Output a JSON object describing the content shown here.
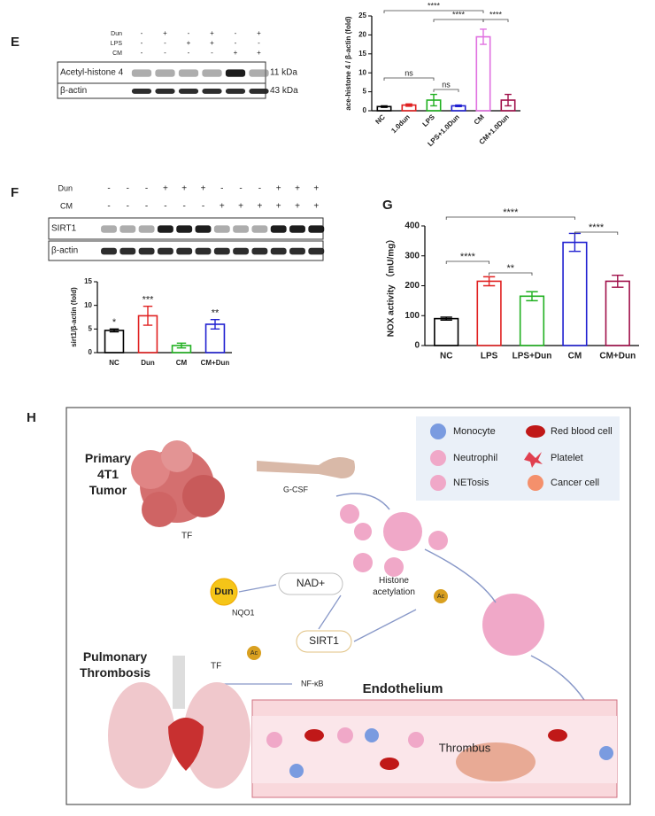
{
  "panels": [
    "E",
    "F",
    "G",
    "H"
  ],
  "blot_e": {
    "conditions": [
      {
        "name": "Dun",
        "signs": [
          "-",
          "+",
          "-",
          "+",
          "-",
          "+"
        ]
      },
      {
        "name": "LPS",
        "signs": [
          "-",
          "-",
          "+",
          "+",
          "-",
          "-"
        ]
      },
      {
        "name": "CM",
        "signs": [
          "-",
          "-",
          "-",
          "-",
          "+",
          "+"
        ]
      }
    ],
    "bands": [
      {
        "name": "Acetyl-histone 4",
        "size": "11 kDa"
      },
      {
        "name": "β-actin",
        "size": "43 kDa"
      }
    ]
  },
  "blot_f": {
    "conditions": [
      {
        "name": "Dun",
        "signs": [
          "-",
          "-",
          "-",
          "+",
          "+",
          "+",
          "-",
          "-",
          "-",
          "+",
          "+",
          "+"
        ]
      },
      {
        "name": "CM",
        "signs": [
          "-",
          "-",
          "-",
          "-",
          "-",
          "-",
          "+",
          "+",
          "+",
          "+",
          "+",
          "+"
        ]
      }
    ],
    "bands": [
      {
        "name": "SIRT1"
      },
      {
        "name": "β-actin"
      }
    ]
  },
  "chart_data": [
    {
      "type": "bar",
      "y_label": "ace-histone 4 / β-actin (fold)",
      "categories": [
        "NC",
        "1.0dun",
        "LPS",
        "LPS+1.0Dun",
        "CM",
        "CM+1.0Dun"
      ],
      "values": [
        1.1,
        1.5,
        2.8,
        1.3,
        19.5,
        2.8
      ],
      "errors": [
        0.2,
        0.3,
        1.5,
        0.2,
        2,
        1.5
      ],
      "colors": [
        "#000000",
        "#e02020",
        "#20b020",
        "#2020d0",
        "#e070e0",
        "#a0104a"
      ],
      "ylim": [
        0,
        25
      ],
      "yticks": [
        0,
        5,
        10,
        15,
        20,
        25
      ],
      "brackets": [
        {
          "text": "****",
          "from": "NC",
          "to": "CM"
        },
        {
          "text": "****",
          "from": "LPS",
          "to": "CM"
        },
        {
          "text": "****",
          "from": "CM",
          "to": "CM+1.0Dun"
        },
        {
          "text": "ns",
          "from": "NC",
          "to": "LPS"
        },
        {
          "text": "ns",
          "from": "LPS",
          "to": "LPS+1.0Dun"
        }
      ]
    },
    {
      "type": "bar",
      "y_label": "sirt1/β-actin (fold)",
      "categories": [
        "NC",
        "Dun",
        "CM",
        "CM+Dun"
      ],
      "values": [
        4.7,
        7.8,
        1.5,
        6.0
      ],
      "errors": [
        0.3,
        2,
        0.5,
        1
      ],
      "colors": [
        "#000000",
        "#e02020",
        "#20b020",
        "#2020d0"
      ],
      "ylim": [
        0,
        15
      ],
      "yticks": [
        0,
        5,
        10,
        15
      ],
      "marks": [
        {
          "text": "*",
          "at": "NC"
        },
        {
          "text": "***",
          "at": "Dun"
        },
        {
          "text": "**",
          "at": "CM+Dun"
        }
      ]
    },
    {
      "type": "bar",
      "y_label": "NOX activity （mU/mg）",
      "categories": [
        "NC",
        "LPS",
        "LPS+Dun",
        "CM",
        "CM+Dun"
      ],
      "values": [
        90,
        215,
        165,
        345,
        215
      ],
      "errors": [
        5,
        15,
        15,
        30,
        20
      ],
      "colors": [
        "#000000",
        "#e02020",
        "#20b020",
        "#2020d0",
        "#a0104a"
      ],
      "ylim": [
        0,
        400
      ],
      "yticks": [
        0,
        100,
        200,
        300,
        400
      ],
      "brackets": [
        {
          "text": "****",
          "from": "NC",
          "to": "CM"
        },
        {
          "text": "****",
          "from": "CM",
          "to": "CM+Dun"
        },
        {
          "text": "****",
          "from": "NC",
          "to": "LPS"
        },
        {
          "text": "**",
          "from": "LPS",
          "to": "LPS+Dun"
        }
      ]
    }
  ],
  "diagram": {
    "legend": [
      "Monocyte",
      "Red blood cell",
      "Neutrophil",
      "Platelet",
      "NETosis",
      "Cancer cell"
    ],
    "tumor": "Primary 4T1 Tumor",
    "tf_top": "TF",
    "gcsf": "G-CSF",
    "dun": "Dun",
    "nqo1": "NQO1",
    "nad": "NAD+",
    "sirt1": "SIRT1",
    "ac_left": "Ac",
    "nfkb": "NF-κB",
    "histone": "Histone acetylation",
    "ac_right": "Ac",
    "thrombosis": "Pulmonary Thrombosis",
    "tf_lung": "TF",
    "endothelium": "Endothelium",
    "thrombus": "Thrombus"
  }
}
